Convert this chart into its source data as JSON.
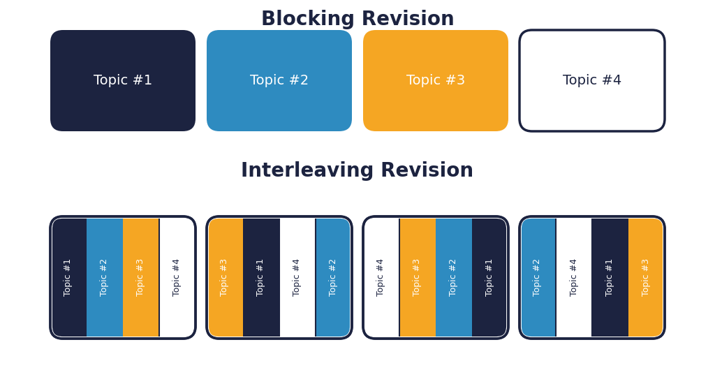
{
  "title_blocking": "Blocking Revision",
  "title_interleaving": "Interleaving Revision",
  "background_color": "#ffffff",
  "colors": {
    "dark_navy": "#1c2340",
    "blue": "#2e8bc0",
    "orange": "#f5a623",
    "white": "#ffffff",
    "border": "#1c2340"
  },
  "blocking_topics": [
    {
      "label": "Topic #1",
      "bg": "#1c2340",
      "text": "#ffffff"
    },
    {
      "label": "Topic #2",
      "bg": "#2e8bc0",
      "text": "#ffffff"
    },
    {
      "label": "Topic #3",
      "bg": "#f5a623",
      "text": "#ffffff"
    },
    {
      "label": "Topic #4",
      "bg": "#ffffff",
      "text": "#1c2340"
    }
  ],
  "interleaving_groups": [
    [
      {
        "label": "Topic #1",
        "bg": "#1c2340",
        "text": "#ffffff"
      },
      {
        "label": "Topic #2",
        "bg": "#2e8bc0",
        "text": "#ffffff"
      },
      {
        "label": "Topic #3",
        "bg": "#f5a623",
        "text": "#ffffff"
      },
      {
        "label": "Topic #4",
        "bg": "#ffffff",
        "text": "#1c2340"
      }
    ],
    [
      {
        "label": "Topic #3",
        "bg": "#f5a623",
        "text": "#ffffff"
      },
      {
        "label": "Topic #1",
        "bg": "#1c2340",
        "text": "#ffffff"
      },
      {
        "label": "Topic #4",
        "bg": "#ffffff",
        "text": "#1c2340"
      },
      {
        "label": "Topic #2",
        "bg": "#2e8bc0",
        "text": "#ffffff"
      }
    ],
    [
      {
        "label": "Topic #4",
        "bg": "#ffffff",
        "text": "#1c2340"
      },
      {
        "label": "Topic #3",
        "bg": "#f5a623",
        "text": "#ffffff"
      },
      {
        "label": "Topic #2",
        "bg": "#2e8bc0",
        "text": "#ffffff"
      },
      {
        "label": "Topic #1",
        "bg": "#1c2340",
        "text": "#ffffff"
      }
    ],
    [
      {
        "label": "Topic #2",
        "bg": "#2e8bc0",
        "text": "#ffffff"
      },
      {
        "label": "Topic #4",
        "bg": "#ffffff",
        "text": "#1c2340"
      },
      {
        "label": "Topic #1",
        "bg": "#1c2340",
        "text": "#ffffff"
      },
      {
        "label": "Topic #3",
        "bg": "#f5a623",
        "text": "#ffffff"
      }
    ]
  ],
  "fig_width": 10.24,
  "fig_height": 5.4,
  "dpi": 100,
  "title_fontsize": 20,
  "block_label_fontsize": 14,
  "strip_label_fontsize": 9
}
